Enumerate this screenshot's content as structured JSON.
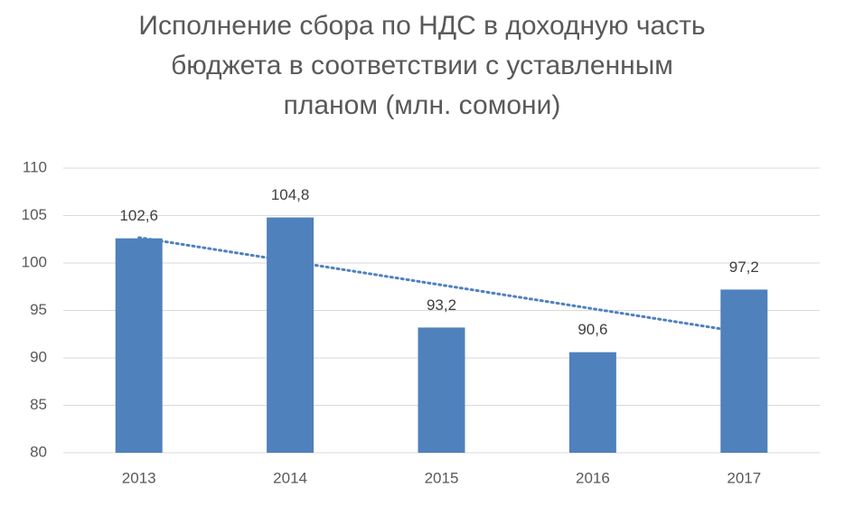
{
  "chart_data": {
    "type": "bar",
    "title": [
      "Исполнение сбора по НДС в доходную часть",
      "бюджета в соответствии с уставленным",
      "планом (млн. сомони)"
    ],
    "categories": [
      "2013",
      "2014",
      "2015",
      "2016",
      "2017"
    ],
    "values": [
      102.6,
      104.8,
      93.2,
      90.6,
      97.2
    ],
    "value_labels": [
      "102,6",
      "104,8",
      "93,2",
      "90,6",
      "97,2"
    ],
    "color": "#4f81bd",
    "ylim": [
      80,
      110
    ],
    "yticks": [
      80,
      85,
      90,
      95,
      100,
      105,
      110
    ],
    "grid": true,
    "trendline": "linear"
  }
}
